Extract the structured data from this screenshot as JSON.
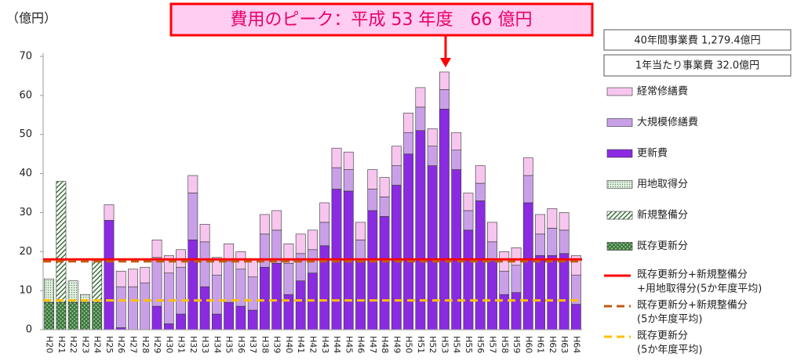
{
  "chart_data": {
    "type": "stacked_bar",
    "y_axis_label": "（億円）",
    "annotation": "費用のピーク：平成 53 年度　66 億円",
    "info_boxes": [
      "40年間事業費  1,279.4億円",
      "1年当たり事業費  32.0億円"
    ],
    "categories": [
      "H20",
      "H21",
      "H22",
      "H23",
      "H24",
      "H25",
      "H26",
      "H27",
      "H28",
      "H29",
      "H30",
      "H31",
      "H32",
      "H33",
      "H34",
      "H35",
      "H36",
      "H37",
      "H38",
      "H39",
      "H40",
      "H41",
      "H42",
      "H43",
      "H44",
      "H45",
      "H46",
      "H47",
      "H48",
      "H49",
      "H50",
      "H51",
      "H52",
      "H53",
      "H54",
      "H55",
      "H56",
      "H57",
      "H58",
      "H59",
      "H60",
      "H61",
      "H62",
      "H63",
      "H64"
    ],
    "ylim": [
      0,
      70
    ],
    "yticks": [
      0,
      10,
      20,
      30,
      40,
      50,
      60,
      70
    ],
    "series": [
      {
        "name": "既存更新分",
        "color": "#2f6b2f",
        "pattern": "crosshatch",
        "values": [
          7,
          7,
          7,
          7,
          7,
          null,
          null,
          null,
          null,
          null,
          null,
          null,
          null,
          null,
          null,
          null,
          null,
          null,
          null,
          null,
          null,
          null,
          null,
          null,
          null,
          null,
          null,
          null,
          null,
          null,
          null,
          null,
          null,
          null,
          null,
          null,
          null,
          null,
          null,
          null,
          null,
          null,
          null,
          null,
          null
        ]
      },
      {
        "name": "新規整備分",
        "color": "#2f6b2f",
        "pattern": "diagonal",
        "values": [
          null,
          31,
          null,
          null,
          11,
          null,
          null,
          null,
          null,
          null,
          null,
          null,
          null,
          null,
          null,
          null,
          null,
          null,
          null,
          null,
          null,
          null,
          null,
          null,
          null,
          null,
          null,
          null,
          null,
          null,
          null,
          null,
          null,
          null,
          null,
          null,
          null,
          null,
          null,
          null,
          null,
          null,
          null,
          null,
          null
        ]
      },
      {
        "name": "用地取得分",
        "color": "#5a8f5a",
        "pattern": "dots",
        "values": [
          6,
          null,
          5.5,
          2,
          null,
          null,
          null,
          null,
          null,
          null,
          null,
          null,
          null,
          null,
          null,
          null,
          null,
          null,
          null,
          null,
          null,
          null,
          null,
          null,
          null,
          null,
          null,
          null,
          null,
          null,
          null,
          null,
          null,
          null,
          null,
          null,
          null,
          null,
          null,
          null,
          null,
          null,
          null,
          null,
          null
        ]
      },
      {
        "name": "更新費",
        "color": "#8a2be2",
        "pattern": "solid",
        "values": [
          null,
          null,
          null,
          null,
          null,
          28,
          0.5,
          0,
          0,
          6,
          1.5,
          4,
          23,
          11,
          4,
          7,
          6,
          5,
          16,
          17,
          9,
          12.5,
          14.5,
          21.5,
          36,
          35.5,
          17.5,
          30.5,
          29,
          37,
          45,
          51,
          42,
          56.5,
          41,
          25.5,
          33,
          17.5,
          9,
          9.5,
          32.5,
          19,
          19,
          19.5,
          6.5
        ]
      },
      {
        "name": "大規模修繕費",
        "color": "#c9a0e8",
        "pattern": "solid",
        "values": [
          null,
          null,
          null,
          null,
          null,
          0,
          10.5,
          11,
          12,
          12.5,
          13,
          12,
          12,
          11.5,
          10,
          10.5,
          9.5,
          8.5,
          8.5,
          8.5,
          8,
          7,
          6,
          6,
          5.5,
          5.5,
          5.5,
          5.5,
          5,
          5,
          5.5,
          6,
          5,
          5,
          5,
          5,
          4.5,
          5,
          6,
          7,
          7,
          5.5,
          7,
          6,
          7.5
        ]
      },
      {
        "name": "経常修繕費",
        "color": "#f7c6ef",
        "pattern": "solid",
        "values": [
          null,
          null,
          null,
          null,
          null,
          4,
          4,
          4.5,
          4,
          4.5,
          4.5,
          4.5,
          4.5,
          4.5,
          4.5,
          4.5,
          4.5,
          4.5,
          5,
          5,
          5,
          5,
          5,
          5,
          5,
          4.5,
          4.5,
          5,
          5,
          5,
          5,
          5,
          4.5,
          4.5,
          4.5,
          4.5,
          4.5,
          5,
          5,
          4.5,
          4.5,
          5,
          5,
          4.5,
          5
        ]
      }
    ],
    "reference_lines": [
      {
        "label_lines": [
          "既存更新分+新規整備分",
          "+用地取得分(5か年度平均)"
        ],
        "value": 18,
        "color": "#ff0000",
        "style": "solid"
      },
      {
        "label_lines": [
          "既存更新分+新規整備分",
          "(5か年度平均)"
        ],
        "value": 17.5,
        "color": "#c55a11",
        "style": "dashed"
      },
      {
        "label_lines": [
          "既存更新分",
          "(5か年度平均)"
        ],
        "value": 7.5,
        "color": "#ffc000",
        "style": "dashed"
      }
    ]
  }
}
